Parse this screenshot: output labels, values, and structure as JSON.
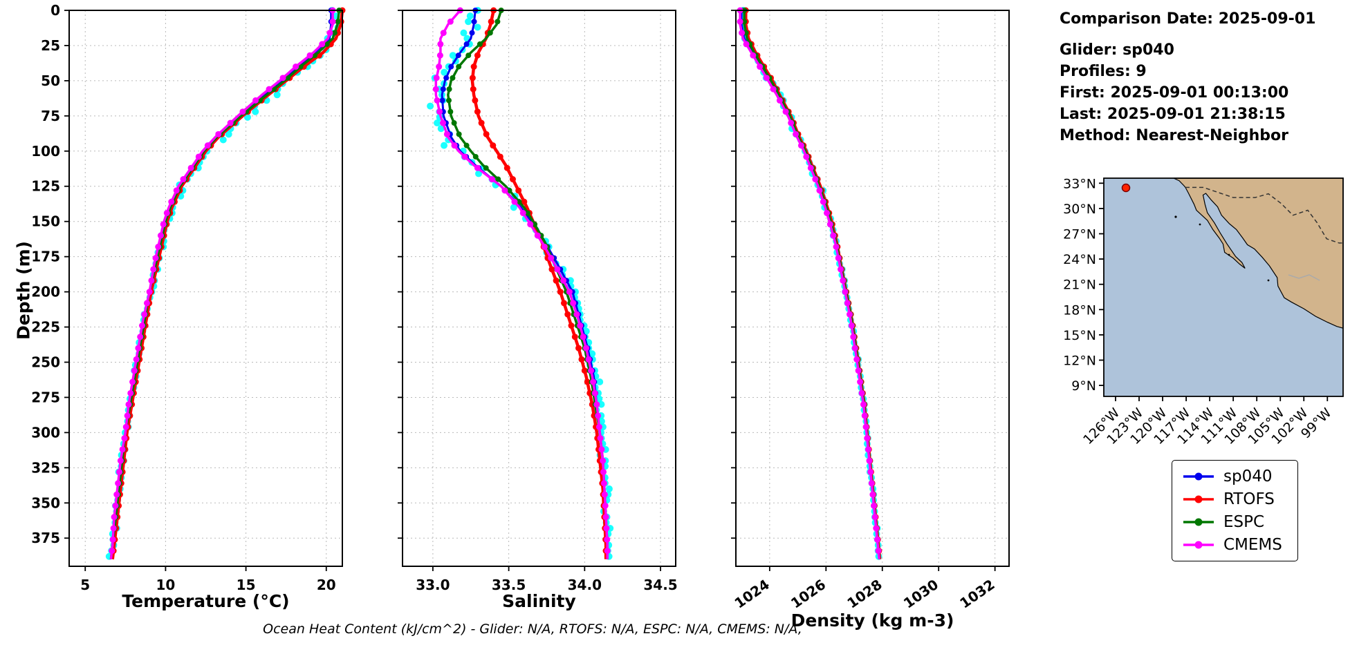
{
  "info_panel": {
    "lines": [
      "Comparison Date: 2025-09-01",
      "",
      "Glider: sp040",
      "Profiles: 9",
      "First: 2025-09-01 00:13:00",
      "Last: 2025-09-01 21:38:15",
      "Method: Nearest-Neighbor"
    ]
  },
  "caption": "Ocean Heat Content (kJ/cm^2) - Glider: N/A,  RTOFS: N/A,  ESPC: N/A,  CMEMS: N/A,",
  "legend": {
    "entries": [
      {
        "label": "sp040",
        "color": "#0000ee"
      },
      {
        "label": "RTOFS",
        "color": "#ff0000"
      },
      {
        "label": "ESPC",
        "color": "#007700"
      },
      {
        "label": "CMEMS",
        "color": "#ff00ff"
      }
    ]
  },
  "map": {
    "lat_ticks": [
      "33°N",
      "30°N",
      "27°N",
      "24°N",
      "21°N",
      "18°N",
      "15°N",
      "12°N",
      "9°N"
    ],
    "lon_ticks": [
      "126°W",
      "123°W",
      "120°W",
      "117°W",
      "114°W",
      "111°W",
      "108°W",
      "105°W",
      "102°W",
      "99°W"
    ],
    "ocean_color": "#aec3da",
    "land_color": "#d2b48c",
    "marker_color": "#ff2400"
  },
  "chart_data": {
    "type": "line",
    "description": "Glider-vs-model vertical profile comparison: temperature, salinity and density versus depth, with raw glider scatter (cyan)",
    "ylabel": "Depth (m)",
    "ylim": [
      0,
      395
    ],
    "yticks": [
      0,
      25,
      50,
      75,
      100,
      125,
      150,
      175,
      200,
      225,
      250,
      275,
      300,
      325,
      350,
      375
    ],
    "ytick_labels": [
      "0",
      "25",
      "50",
      "75",
      "100",
      "125",
      "150",
      "175",
      "200",
      "225",
      "250",
      "275",
      "300",
      "325",
      "350",
      "375"
    ],
    "depths": [
      0,
      10,
      20,
      30,
      40,
      50,
      60,
      75,
      90,
      100,
      110,
      125,
      140,
      150,
      165,
      180,
      200,
      220,
      240,
      260,
      280,
      300,
      320,
      340,
      360,
      380,
      390
    ],
    "depth_max_data": 390,
    "panels": [
      {
        "id": "temperature",
        "title": "Temperature (°C)",
        "xlim": [
          4,
          21
        ],
        "xticks": [
          5,
          10,
          15,
          20
        ],
        "xtick_labels": [
          "5",
          "10",
          "15",
          "20"
        ],
        "rotate_xticks": false,
        "raw_spread": 0.35,
        "series": [
          {
            "name": "glider-raw",
            "color": "#00ffff",
            "style": "scatter",
            "values": [
              20.5,
              20.4,
              20.3,
              19.6,
              18.6,
              17.6,
              16.6,
              15.0,
              13.5,
              12.6,
              12.0,
              11.0,
              10.4,
              10.1,
              9.8,
              9.5,
              9.1,
              8.7,
              8.4,
              8.1,
              7.8,
              7.5,
              7.3,
              7.1,
              6.9,
              6.7,
              6.6
            ]
          },
          {
            "name": "sp040",
            "color": "#0000ee",
            "width": 3,
            "marker_r": 4,
            "values": [
              20.3,
              20.3,
              20.2,
              19.3,
              18.3,
              17.3,
              16.2,
              14.6,
              13.2,
              12.4,
              11.8,
              10.9,
              10.3,
              10.0,
              9.7,
              9.4,
              9.0,
              8.7,
              8.4,
              8.1,
              7.8,
              7.5,
              7.3,
              7.1,
              6.9,
              6.7,
              6.6
            ]
          },
          {
            "name": "RTOFS",
            "color": "#ff0000",
            "width": 4.5,
            "marker_r": 4.5,
            "values": [
              21.0,
              20.9,
              20.6,
              19.8,
              18.6,
              17.5,
              16.4,
              14.8,
              13.3,
              12.5,
              11.9,
              11.0,
              10.4,
              10.1,
              9.8,
              9.5,
              9.1,
              8.8,
              8.5,
              8.2,
              7.9,
              7.6,
              7.4,
              7.2,
              7.0,
              6.8,
              6.7
            ]
          },
          {
            "name": "ESPC",
            "color": "#007700",
            "width": 3.5,
            "marker_r": 4,
            "values": [
              20.8,
              20.7,
              20.4,
              19.5,
              18.4,
              17.4,
              16.3,
              14.7,
              13.2,
              12.4,
              11.8,
              10.9,
              10.3,
              10.0,
              9.7,
              9.4,
              9.0,
              8.7,
              8.4,
              8.1,
              7.8,
              7.5,
              7.3,
              7.1,
              6.9,
              6.7,
              6.6
            ]
          },
          {
            "name": "CMEMS",
            "color": "#ff00ff",
            "width": 3.5,
            "marker_r": 4.5,
            "values": [
              20.4,
              20.4,
              20.1,
              19.2,
              18.1,
              17.1,
              16.0,
              14.5,
              13.1,
              12.3,
              11.7,
              10.8,
              10.2,
              9.9,
              9.6,
              9.3,
              9.0,
              8.6,
              8.3,
              8.0,
              7.7,
              7.5,
              7.2,
              7.0,
              6.8,
              6.7,
              6.6
            ]
          }
        ]
      },
      {
        "id": "salinity",
        "title": "Salinity",
        "xlim": [
          32.8,
          34.6
        ],
        "xticks": [
          33.0,
          33.5,
          34.0,
          34.5
        ],
        "xtick_labels": [
          "33.0",
          "33.5",
          "34.0",
          "34.5"
        ],
        "rotate_xticks": false,
        "raw_spread": 0.055,
        "series": [
          {
            "name": "glider-raw",
            "color": "#00ffff",
            "style": "scatter",
            "values": [
              33.25,
              33.24,
              33.22,
              33.15,
              33.08,
              33.04,
              33.02,
              33.03,
              33.08,
              33.15,
              33.25,
              33.43,
              33.57,
              33.64,
              33.73,
              33.82,
              33.93,
              33.98,
              34.03,
              34.07,
              34.09,
              34.11,
              34.13,
              34.14,
              34.15,
              34.16,
              34.16
            ]
          },
          {
            "name": "sp040",
            "color": "#0000ee",
            "width": 3,
            "marker_r": 4,
            "values": [
              33.28,
              33.27,
              33.25,
              33.18,
              33.12,
              33.08,
              33.06,
              33.07,
              33.12,
              33.18,
              33.28,
              33.45,
              33.58,
              33.65,
              33.74,
              33.82,
              33.92,
              33.97,
              34.02,
              34.06,
              34.08,
              34.1,
              34.12,
              34.13,
              34.14,
              34.15,
              34.15
            ]
          },
          {
            "name": "RTOFS",
            "color": "#ff0000",
            "width": 4.5,
            "marker_r": 4.5,
            "values": [
              33.4,
              33.38,
              33.35,
              33.3,
              33.27,
              33.26,
              33.27,
              33.3,
              33.36,
              33.42,
              33.48,
              33.55,
              33.62,
              33.66,
              33.72,
              33.77,
              33.84,
              33.9,
              33.96,
              34.01,
              34.05,
              34.08,
              34.1,
              34.12,
              34.13,
              34.14,
              34.14
            ]
          },
          {
            "name": "ESPC",
            "color": "#007700",
            "width": 3.5,
            "marker_r": 4,
            "values": [
              33.45,
              33.42,
              33.35,
              33.25,
              33.17,
              33.12,
              33.1,
              33.12,
              33.18,
              33.25,
              33.33,
              33.48,
              33.6,
              33.66,
              33.74,
              33.8,
              33.88,
              33.94,
              34.0,
              34.04,
              34.07,
              34.1,
              34.12,
              34.13,
              34.14,
              34.15,
              34.15
            ]
          },
          {
            "name": "CMEMS",
            "color": "#ff00ff",
            "width": 3.5,
            "marker_r": 4.5,
            "values": [
              33.18,
              33.1,
              33.05,
              33.05,
              33.04,
              33.02,
              33.02,
              33.05,
              33.1,
              33.17,
              33.27,
              33.45,
              33.57,
              33.63,
              33.72,
              33.8,
              33.9,
              33.96,
              34.01,
              34.05,
              34.08,
              34.1,
              34.12,
              34.13,
              34.14,
              34.15,
              34.15
            ]
          }
        ]
      },
      {
        "id": "density",
        "title": "Density (kg m-3)",
        "xlim": [
          1022.8,
          1032.5
        ],
        "xticks": [
          1024,
          1026,
          1028,
          1030,
          1032
        ],
        "xtick_labels": [
          "1024",
          "1026",
          "1028",
          "1030",
          "1032"
        ],
        "rotate_xticks": true,
        "raw_spread": 0.09,
        "series": [
          {
            "name": "glider-raw",
            "color": "#00ffff",
            "style": "scatter",
            "values": [
              1023.0,
              1023.0,
              1023.1,
              1023.4,
              1023.7,
              1024.0,
              1024.3,
              1024.7,
              1025.0,
              1025.25,
              1025.45,
              1025.75,
              1026.0,
              1026.15,
              1026.35,
              1026.5,
              1026.7,
              1026.9,
              1027.05,
              1027.2,
              1027.35,
              1027.45,
              1027.55,
              1027.65,
              1027.75,
              1027.85,
              1027.9
            ]
          },
          {
            "name": "sp040",
            "color": "#0000ee",
            "width": 3,
            "marker_r": 4,
            "values": [
              1023.0,
              1023.0,
              1023.1,
              1023.4,
              1023.7,
              1024.0,
              1024.3,
              1024.7,
              1025.0,
              1025.25,
              1025.45,
              1025.75,
              1026.0,
              1026.15,
              1026.35,
              1026.5,
              1026.7,
              1026.9,
              1027.05,
              1027.2,
              1027.35,
              1027.45,
              1027.55,
              1027.65,
              1027.75,
              1027.85,
              1027.9
            ]
          },
          {
            "name": "RTOFS",
            "color": "#ff0000",
            "width": 4.5,
            "marker_r": 4.5,
            "values": [
              1023.15,
              1023.15,
              1023.25,
              1023.5,
              1023.8,
              1024.1,
              1024.35,
              1024.75,
              1025.05,
              1025.3,
              1025.5,
              1025.8,
              1026.05,
              1026.2,
              1026.38,
              1026.52,
              1026.72,
              1026.92,
              1027.07,
              1027.22,
              1027.36,
              1027.46,
              1027.56,
              1027.66,
              1027.76,
              1027.86,
              1027.91
            ]
          },
          {
            "name": "ESPC",
            "color": "#007700",
            "width": 3.5,
            "marker_r": 4,
            "values": [
              1023.1,
              1023.1,
              1023.2,
              1023.45,
              1023.75,
              1024.05,
              1024.32,
              1024.72,
              1025.02,
              1025.27,
              1025.47,
              1025.77,
              1026.02,
              1026.17,
              1026.36,
              1026.51,
              1026.71,
              1026.91,
              1027.06,
              1027.21,
              1027.35,
              1027.45,
              1027.55,
              1027.65,
              1027.75,
              1027.85,
              1027.9
            ]
          },
          {
            "name": "CMEMS",
            "color": "#ff00ff",
            "width": 3.5,
            "marker_r": 4.5,
            "values": [
              1022.95,
              1022.95,
              1023.05,
              1023.35,
              1023.65,
              1023.95,
              1024.25,
              1024.65,
              1024.97,
              1025.22,
              1025.42,
              1025.72,
              1025.97,
              1026.12,
              1026.33,
              1026.48,
              1026.68,
              1026.88,
              1027.03,
              1027.18,
              1027.33,
              1027.44,
              1027.54,
              1027.64,
              1027.74,
              1027.84,
              1027.89
            ]
          }
        ]
      }
    ]
  }
}
